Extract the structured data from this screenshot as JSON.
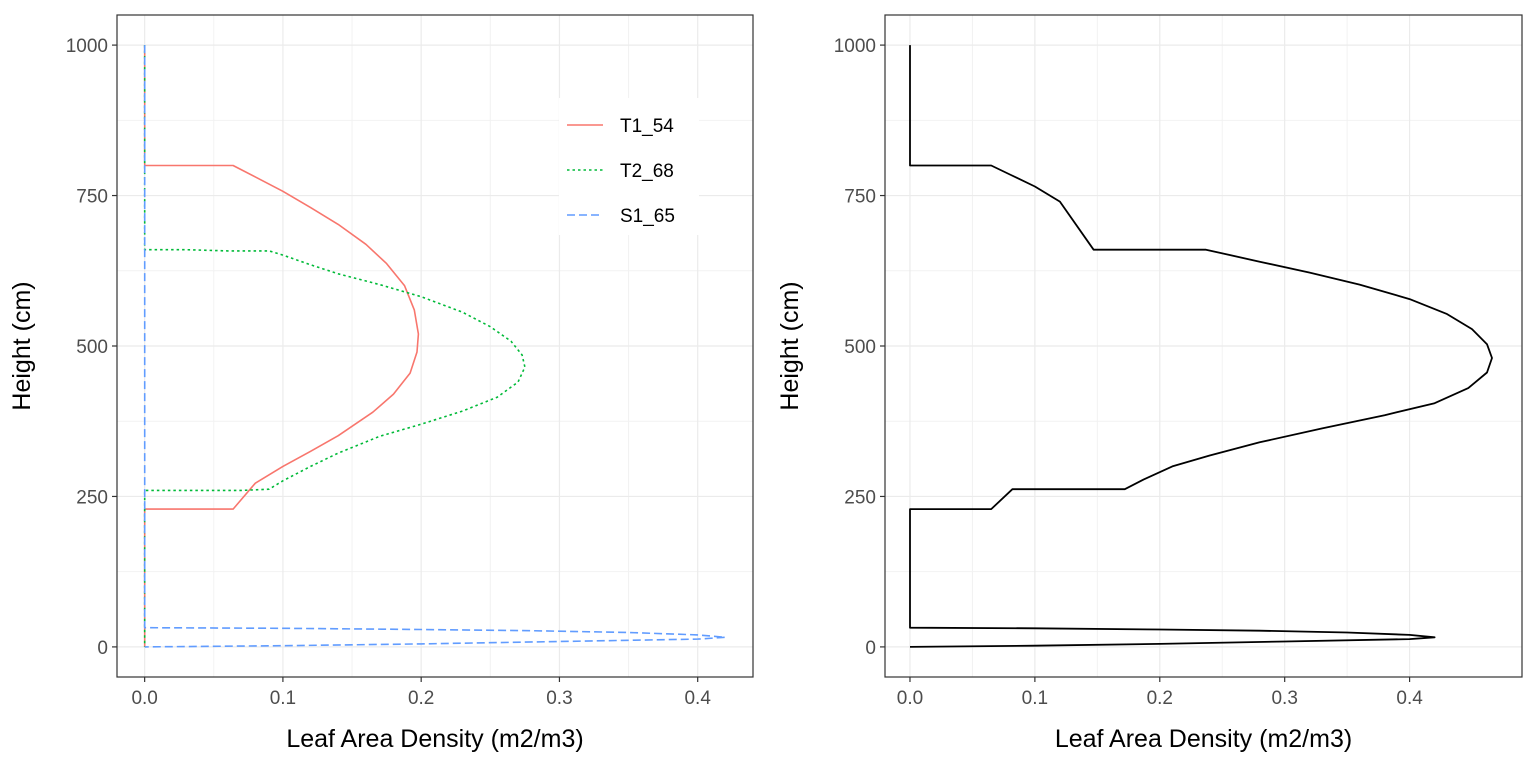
{
  "chart_data": [
    {
      "type": "line",
      "orientation": "profile",
      "xlabel": "Leaf Area Density (m2/m3)",
      "ylabel": "Height (cm)",
      "xlim": [
        -0.02,
        0.44
      ],
      "ylim": [
        -50,
        1050
      ],
      "x_ticks": [
        "0.0",
        "0.1",
        "0.2",
        "0.3",
        "0.4"
      ],
      "y_ticks": [
        "0",
        "250",
        "500",
        "750",
        "1000"
      ],
      "grid": true,
      "legend_position": "top-right",
      "series": [
        {
          "name": "T1_54",
          "color": "#F8766D",
          "line": "solid",
          "points": [
            [
              0,
              1000
            ],
            [
              0,
              800
            ],
            [
              0.064,
              800
            ],
            [
              0.08,
              781
            ],
            [
              0.1,
              757
            ],
            [
              0.12,
              730
            ],
            [
              0.14,
              702
            ],
            [
              0.16,
              669
            ],
            [
              0.175,
              637
            ],
            [
              0.188,
              600
            ],
            [
              0.195,
              560
            ],
            [
              0.198,
              520
            ],
            [
              0.197,
              490
            ],
            [
              0.192,
              455
            ],
            [
              0.18,
              420
            ],
            [
              0.165,
              390
            ],
            [
              0.14,
              351
            ],
            [
              0.12,
              325
            ],
            [
              0.1,
              300
            ],
            [
              0.08,
              272
            ],
            [
              0.064,
              229
            ],
            [
              0,
              229
            ],
            [
              0,
              0
            ]
          ]
        },
        {
          "name": "T2_68",
          "color": "#00BA38",
          "line": "dotted",
          "points": [
            [
              0,
              1000
            ],
            [
              0,
              660
            ],
            [
              0.03,
              660
            ],
            [
              0.06,
              658
            ],
            [
              0.09,
              658
            ],
            [
              0.1,
              651
            ],
            [
              0.12,
              635
            ],
            [
              0.14,
              620
            ],
            [
              0.17,
              602
            ],
            [
              0.2,
              582
            ],
            [
              0.23,
              556
            ],
            [
              0.25,
              532
            ],
            [
              0.265,
              508
            ],
            [
              0.273,
              485
            ],
            [
              0.275,
              465
            ],
            [
              0.27,
              440
            ],
            [
              0.255,
              415
            ],
            [
              0.23,
              392
            ],
            [
              0.2,
              370
            ],
            [
              0.17,
              350
            ],
            [
              0.14,
              322
            ],
            [
              0.12,
              300
            ],
            [
              0.1,
              276
            ],
            [
              0.09,
              262
            ],
            [
              0.07,
              260
            ],
            [
              0,
              260
            ],
            [
              0,
              0
            ]
          ]
        },
        {
          "name": "S1_65",
          "color": "#619CFF",
          "line": "dashed",
          "points": [
            [
              0,
              1000
            ],
            [
              0,
              32
            ],
            [
              0.1,
              31
            ],
            [
              0.2,
              29
            ],
            [
              0.28,
              27
            ],
            [
              0.35,
              24
            ],
            [
              0.4,
              20
            ],
            [
              0.42,
              16
            ],
            [
              0.4,
              13
            ],
            [
              0.3,
              9
            ],
            [
              0.2,
              5
            ],
            [
              0.1,
              2
            ],
            [
              0,
              0
            ]
          ]
        }
      ]
    },
    {
      "type": "line",
      "orientation": "profile",
      "xlabel": "Leaf Area Density (m2/m3)",
      "ylabel": "Height (cm)",
      "xlim": [
        -0.02,
        0.49
      ],
      "ylim": [
        -50,
        1050
      ],
      "x_ticks": [
        "0.0",
        "0.1",
        "0.2",
        "0.3",
        "0.4"
      ],
      "y_ticks": [
        "0",
        "250",
        "500",
        "750",
        "1000"
      ],
      "grid": true,
      "series": [
        {
          "color": "#000000",
          "line": "solid",
          "points": [
            [
              0,
              1000
            ],
            [
              0,
              800
            ],
            [
              0.065,
              800
            ],
            [
              0.08,
              785
            ],
            [
              0.1,
              765
            ],
            [
              0.12,
              740
            ],
            [
              0.147,
              660
            ],
            [
              0.237,
              660
            ],
            [
              0.28,
              640
            ],
            [
              0.32,
              622
            ],
            [
              0.36,
              602
            ],
            [
              0.4,
              578
            ],
            [
              0.43,
              553
            ],
            [
              0.45,
              528
            ],
            [
              0.462,
              503
            ],
            [
              0.466,
              480
            ],
            [
              0.462,
              456
            ],
            [
              0.447,
              430
            ],
            [
              0.42,
              405
            ],
            [
              0.38,
              385
            ],
            [
              0.33,
              363
            ],
            [
              0.28,
              340
            ],
            [
              0.24,
              318
            ],
            [
              0.21,
              300
            ],
            [
              0.187,
              278
            ],
            [
              0.172,
              262
            ],
            [
              0.082,
              262
            ],
            [
              0.065,
              229
            ],
            [
              0,
              229
            ],
            [
              0,
              32
            ],
            [
              0.1,
              31
            ],
            [
              0.2,
              29
            ],
            [
              0.28,
              27
            ],
            [
              0.35,
              24
            ],
            [
              0.4,
              20
            ],
            [
              0.42,
              16
            ],
            [
              0.4,
              13
            ],
            [
              0.3,
              9
            ],
            [
              0.2,
              5
            ],
            [
              0.1,
              2
            ],
            [
              0,
              0
            ]
          ]
        }
      ]
    }
  ]
}
